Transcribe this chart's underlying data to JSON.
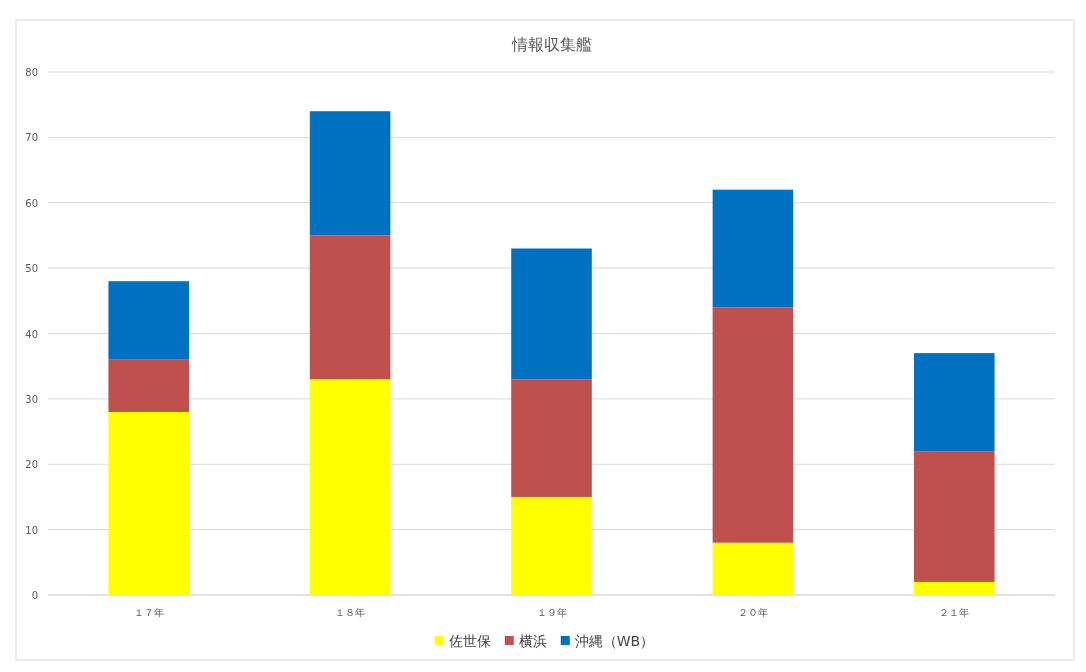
{
  "chart_data": {
    "type": "bar",
    "stacked": true,
    "title": "情報収集艦",
    "categories": [
      "１７年",
      "１８年",
      "１９年",
      "２０年",
      "２１年"
    ],
    "series": [
      {
        "name": "佐世保",
        "color": "#ffff00",
        "values": [
          28,
          33,
          15,
          8,
          2
        ]
      },
      {
        "name": "横浜",
        "color": "#c0504d",
        "values": [
          8,
          22,
          18,
          36,
          20
        ]
      },
      {
        "name": "沖縄（WB）",
        "color": "#0070c0",
        "values": [
          12,
          19,
          20,
          18,
          15
        ]
      }
    ],
    "ylim": [
      0,
      80
    ],
    "yticks": [
      0,
      10,
      20,
      30,
      40,
      50,
      60,
      70,
      80
    ],
    "grid": "y",
    "legend": "bottom"
  }
}
